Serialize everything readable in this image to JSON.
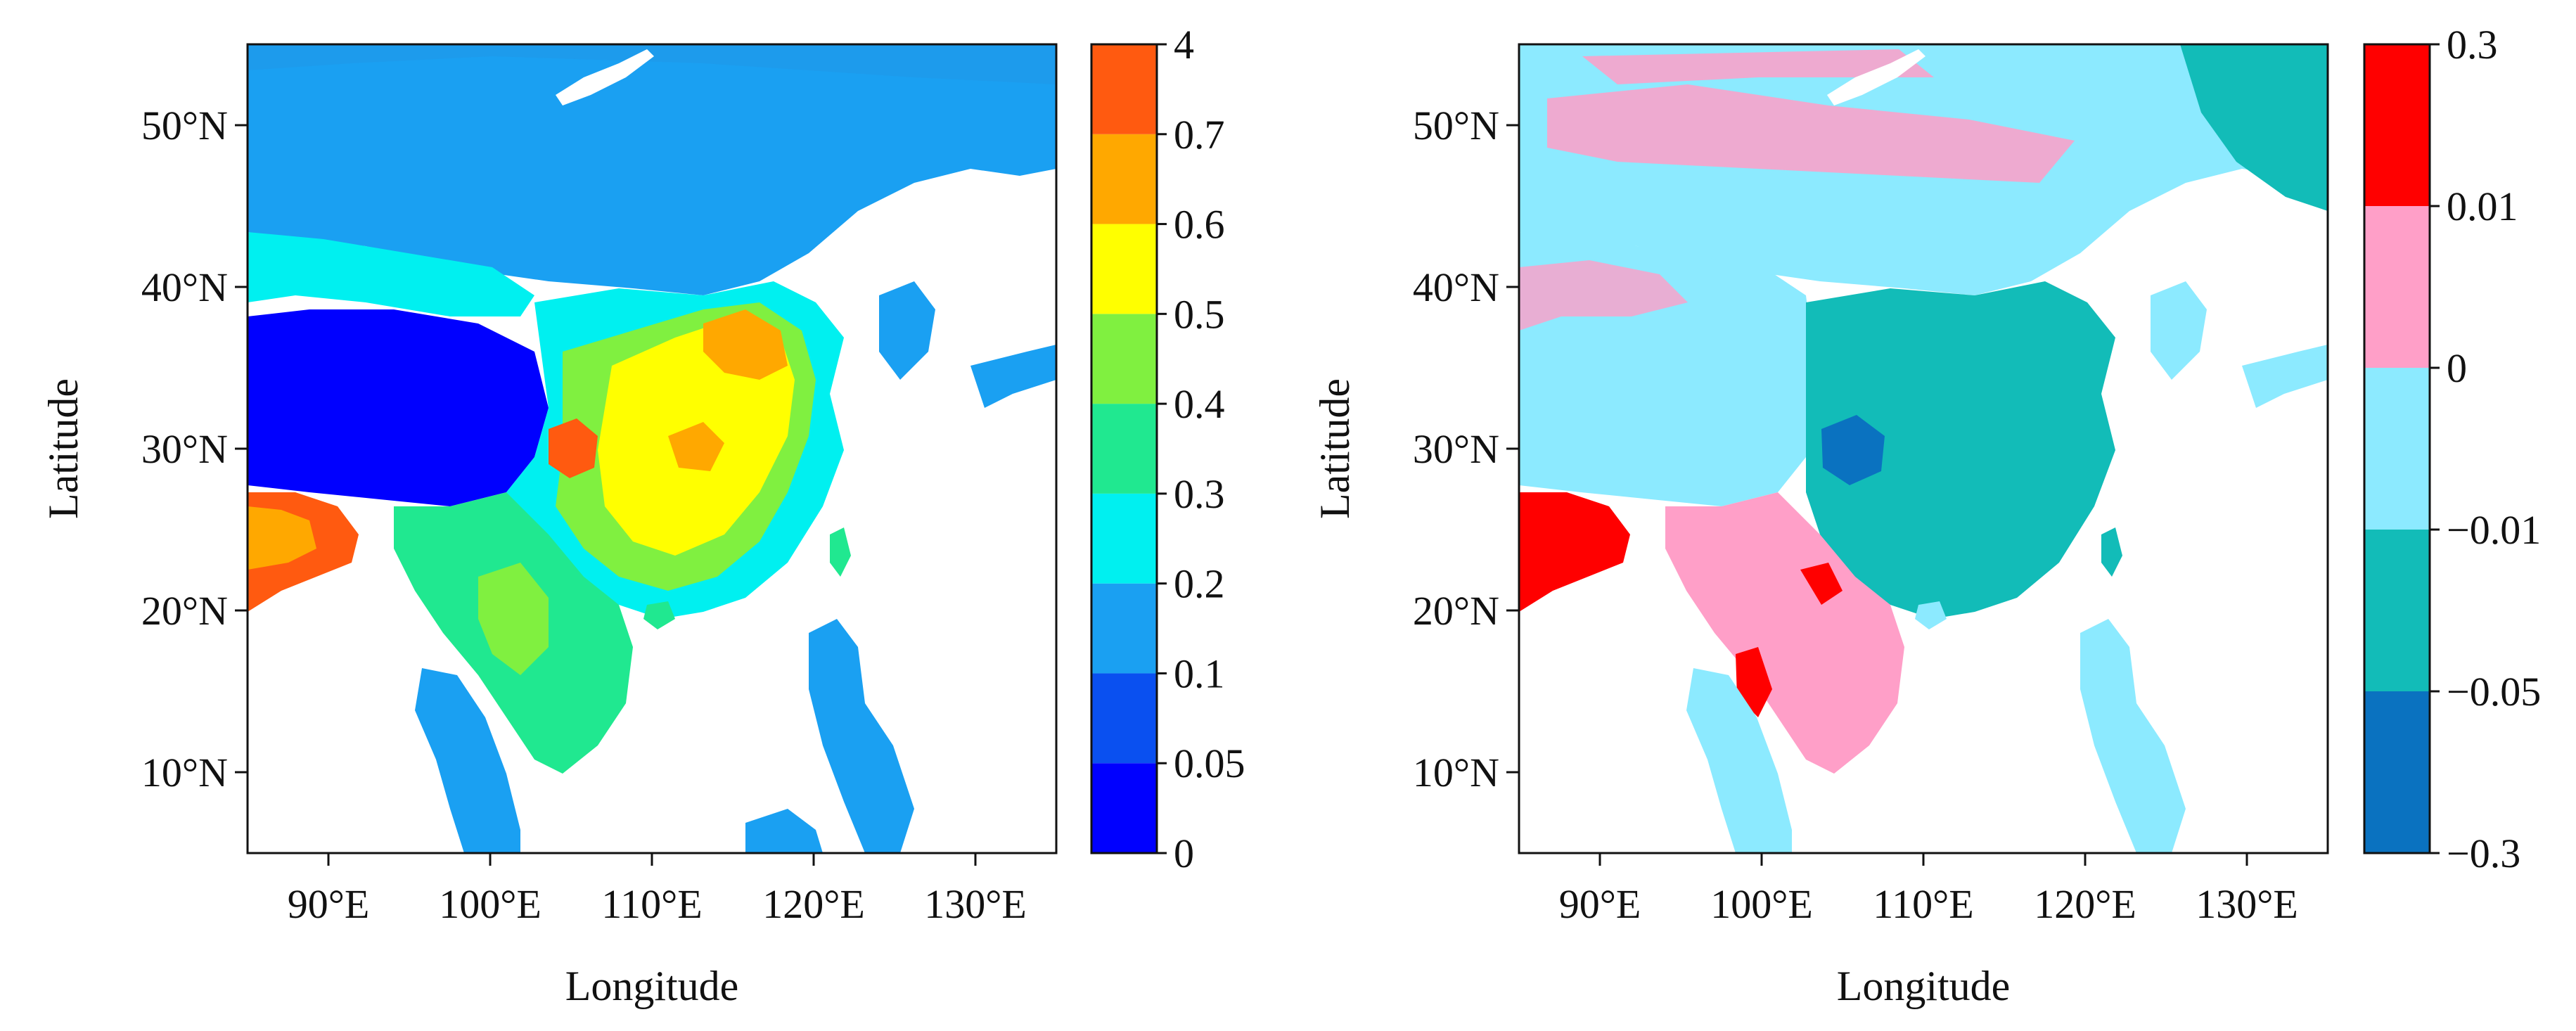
{
  "panels": [
    {
      "id": "left",
      "xlabel": "Longitude",
      "ylabel": "Latitude",
      "lon_range": [
        85,
        135
      ],
      "lat_range": [
        5,
        55
      ],
      "x_ticks": [
        {
          "value": 90,
          "label": "90°E"
        },
        {
          "value": 100,
          "label": "100°E"
        },
        {
          "value": 110,
          "label": "110°E"
        },
        {
          "value": 120,
          "label": "120°E"
        },
        {
          "value": 130,
          "label": "130°E"
        }
      ],
      "y_ticks": [
        {
          "value": 10,
          "label": "10°N"
        },
        {
          "value": 20,
          "label": "20°N"
        },
        {
          "value": 30,
          "label": "30°N"
        },
        {
          "value": 40,
          "label": "40°N"
        },
        {
          "value": 50,
          "label": "50°N"
        }
      ],
      "colorbar": {
        "labels": [
          "0",
          "0.05",
          "0.1",
          "0.2",
          "0.3",
          "0.4",
          "0.5",
          "0.6",
          "0.7",
          "4"
        ],
        "colors": [
          "#0000ff",
          "#0a50f0",
          "#1aa0f2",
          "#00f0f0",
          "#20e890",
          "#80f040",
          "#ffff00",
          "#ffa800",
          "#ff5a10"
        ]
      }
    },
    {
      "id": "right",
      "xlabel": "Longitude",
      "ylabel": "Latitude",
      "lon_range": [
        85,
        135
      ],
      "lat_range": [
        5,
        55
      ],
      "x_ticks": [
        {
          "value": 90,
          "label": "90°E"
        },
        {
          "value": 100,
          "label": "100°E"
        },
        {
          "value": 110,
          "label": "110°E"
        },
        {
          "value": 120,
          "label": "120°E"
        },
        {
          "value": 130,
          "label": "130°E"
        }
      ],
      "y_ticks": [
        {
          "value": 10,
          "label": "10°N"
        },
        {
          "value": 20,
          "label": "20°N"
        },
        {
          "value": 30,
          "label": "30°N"
        },
        {
          "value": 40,
          "label": "40°N"
        },
        {
          "value": 50,
          "label": "50°N"
        }
      ],
      "colorbar": {
        "labels": [
          "−0.3",
          "−0.05",
          "−0.01",
          "0",
          "0.01",
          "0.3"
        ],
        "colors": [
          "#0a72c0",
          "#12bcb8",
          "#8ceaff",
          "#ff9fc8",
          "#ff0000"
        ]
      }
    }
  ]
}
